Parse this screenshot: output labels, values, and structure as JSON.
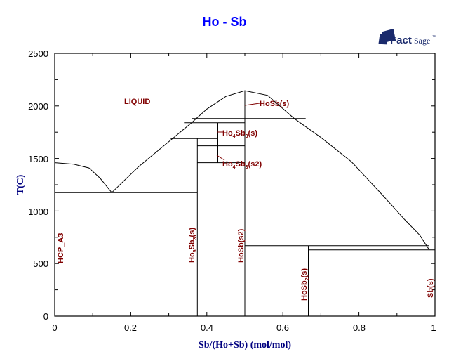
{
  "chart_data": {
    "type": "line",
    "title": "Ho - Sb",
    "xlabel": "Sb/(Ho+Sb) (mol/mol)",
    "ylabel": "T(C)",
    "xlim": [
      0,
      1
    ],
    "ylim": [
      0,
      2500
    ],
    "x_ticks": [
      "0",
      "0.2",
      "0.4",
      "0.6",
      "0.8",
      "1"
    ],
    "y_ticks": [
      "0",
      "500",
      "1000",
      "1500",
      "2000",
      "2500"
    ],
    "grid": false,
    "colors": {
      "title": "#0000ff",
      "axis_label": "#000080",
      "phase_label": "#800000",
      "lines": "#000000"
    },
    "series": [
      {
        "name": "liquidus-Ho-side",
        "points": [
          [
            0,
            1460
          ],
          [
            0.05,
            1445
          ],
          [
            0.09,
            1410
          ],
          [
            0.12,
            1310
          ],
          [
            0.15,
            1175
          ]
        ]
      },
      {
        "name": "liquidus-Ho5Sb3-side",
        "points": [
          [
            0.15,
            1175
          ],
          [
            0.22,
            1420
          ],
          [
            0.31,
            1690
          ],
          [
            0.36,
            1840
          ],
          [
            0.4,
            1970
          ],
          [
            0.45,
            2090
          ],
          [
            0.5,
            2145
          ]
        ]
      },
      {
        "name": "liquidus-Sb-side",
        "points": [
          [
            0.5,
            2145
          ],
          [
            0.56,
            2100
          ],
          [
            0.63,
            1880
          ],
          [
            0.7,
            1700
          ],
          [
            0.78,
            1470
          ],
          [
            0.86,
            1160
          ],
          [
            0.92,
            920
          ],
          [
            0.96,
            770
          ],
          [
            0.985,
            630
          ]
        ]
      },
      {
        "name": "eutectic-Ho-Ho5Sb3",
        "points": [
          [
            0,
            1175
          ],
          [
            0.375,
            1175
          ]
        ]
      },
      {
        "name": "Ho5Sb3-line",
        "points": [
          [
            0.375,
            0
          ],
          [
            0.375,
            1690
          ]
        ]
      },
      {
        "name": "HoSb-line",
        "points": [
          [
            0.5,
            0
          ],
          [
            0.5,
            2145
          ]
        ]
      },
      {
        "name": "HoSb2-line",
        "points": [
          [
            0.667,
            0
          ],
          [
            0.667,
            670
          ]
        ]
      },
      {
        "name": "peritectic-1880",
        "points": [
          [
            0.36,
            1880
          ],
          [
            0.66,
            1880
          ]
        ]
      },
      {
        "name": "horizontal-1840",
        "points": [
          [
            0.34,
            1840
          ],
          [
            0.5,
            1840
          ]
        ]
      },
      {
        "name": "Ho4Sb3-line",
        "points": [
          [
            0.429,
            1460
          ],
          [
            0.429,
            1840
          ]
        ]
      },
      {
        "name": "horizontal-1690",
        "points": [
          [
            0.305,
            1690
          ],
          [
            0.429,
            1690
          ]
        ]
      },
      {
        "name": "horizontal-1620",
        "points": [
          [
            0.375,
            1620
          ],
          [
            0.5,
            1620
          ]
        ]
      },
      {
        "name": "horizontal-1460",
        "points": [
          [
            0.375,
            1460
          ],
          [
            0.5,
            1460
          ]
        ]
      },
      {
        "name": "peritectic-670",
        "points": [
          [
            0.5,
            670
          ],
          [
            0.985,
            670
          ]
        ]
      },
      {
        "name": "eutectic-630",
        "points": [
          [
            0.667,
            630
          ],
          [
            1.0,
            630
          ]
        ]
      }
    ],
    "annotations": [
      {
        "text": "LIQUID",
        "x": 0.19,
        "y": 2030
      },
      {
        "text": "HoSb(s)",
        "x": 0.54,
        "y": 2010
      },
      {
        "text": "Ho4Sb3(s)",
        "x": 0.44,
        "y": 1740
      },
      {
        "text": "Ho4Sb3(s2)",
        "x": 0.44,
        "y": 1440
      },
      {
        "text": "HCP_A3",
        "x": 0.02,
        "y": 720,
        "rotated": true
      },
      {
        "text": "Ho5Sb3(s)",
        "x": 0.37,
        "y": 490,
        "rotated": true
      },
      {
        "text": "HoSb(s2)",
        "x": 0.495,
        "y": 500,
        "rotated": true
      },
      {
        "text": "HoSb2(s)",
        "x": 0.66,
        "y": 140,
        "rotated": true
      },
      {
        "text": "Sb(s)",
        "x": 0.99,
        "y": 150,
        "rotated": true
      }
    ]
  },
  "header": {
    "title": "Ho - Sb"
  },
  "logo": {
    "brand_bold": "Fact",
    "brand_light": "Sage",
    "trademark": "™"
  },
  "axes": {
    "x_label": "Sb/(Ho+Sb) (mol/mol)",
    "y_label": "T(C)",
    "x_ticks": [
      "0",
      "0.2",
      "0.4",
      "0.6",
      "0.8",
      "1"
    ],
    "y_ticks": [
      "0",
      "500",
      "1000",
      "1500",
      "2000",
      "2500"
    ]
  },
  "labels": {
    "liquid": "LIQUID",
    "hosb_s": "HoSb(s)",
    "ho4sb3_s_main": "Ho",
    "ho4sb3_s_sub1": "4",
    "ho4sb3_s_mid": "Sb",
    "ho4sb3_s_sub2": "3",
    "ho4sb3_s_tail": "(s)",
    "ho4sb3_s2_tail": "(s2)",
    "hcp_a3": "HCP_A3",
    "ho5sb3_main": "Ho",
    "ho5sb3_sub1": "5",
    "ho5sb3_mid": "Sb",
    "ho5sb3_sub2": "3",
    "ho5sb3_tail": "(s)",
    "hosb_s2": "HoSb(s2)",
    "hosb2_main": "HoSb",
    "hosb2_sub": "2",
    "hosb2_tail": "(s)",
    "sb_s": "Sb(s)"
  }
}
